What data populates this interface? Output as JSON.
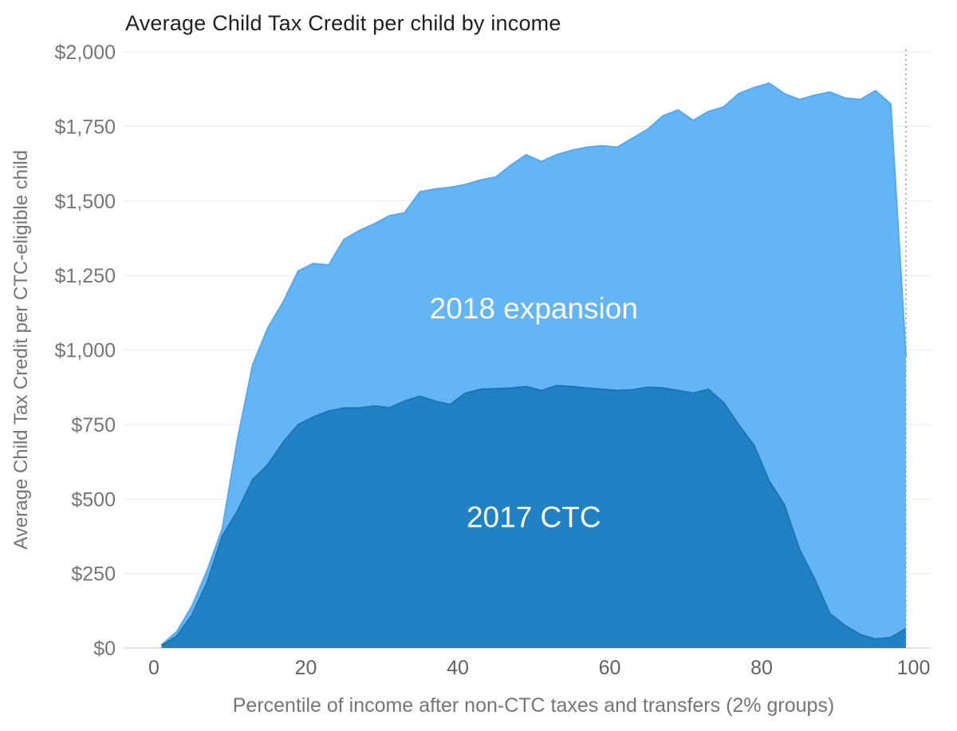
{
  "title": "Average Child Tax Credit per child by income",
  "colors": {
    "series_2017": "#2082c4",
    "series_2017_edge": "#1b76b3",
    "series_2018": "#64b5f6",
    "series_2018_edge": "#55a9ef",
    "grid": "#ededed",
    "axis_line": "#d9d9d9",
    "dotted_line": "#9e9e9e",
    "tick_text": "#757575",
    "title_text": "#212121"
  },
  "chart_data": {
    "type": "area",
    "stacked": true,
    "title": "Average Child Tax Credit per child by income",
    "xlabel": "Percentile of income after non-CTC taxes and transfers (2% groups)",
    "ylabel": "Average Child Tax Credit per CTC-eligible child",
    "x_description": "Income percentile midpoints of 2% groups",
    "x": [
      1,
      3,
      5,
      7,
      9,
      11,
      13,
      15,
      17,
      19,
      21,
      23,
      25,
      27,
      29,
      31,
      33,
      35,
      37,
      39,
      41,
      43,
      45,
      47,
      49,
      51,
      53,
      55,
      57,
      59,
      61,
      63,
      65,
      67,
      69,
      71,
      73,
      75,
      77,
      79,
      81,
      83,
      85,
      87,
      89,
      91,
      93,
      95,
      97,
      99
    ],
    "series": [
      {
        "name": "2017 CTC",
        "values": [
          8,
          40,
          110,
          220,
          375,
          460,
          565,
          615,
          690,
          750,
          775,
          795,
          805,
          805,
          812,
          806,
          828,
          845,
          828,
          817,
          855,
          868,
          870,
          872,
          877,
          864,
          880,
          877,
          872,
          868,
          864,
          866,
          875,
          872,
          864,
          855,
          868,
          823,
          748,
          680,
          560,
          480,
          330,
          230,
          115,
          75,
          45,
          30,
          35,
          65
        ]
      },
      {
        "name": "2018 expansion",
        "values": [
          2,
          15,
          30,
          40,
          25,
          240,
          385,
          460,
          470,
          515,
          515,
          490,
          565,
          595,
          611,
          644,
          632,
          685,
          712,
          728,
          700,
          702,
          710,
          748,
          778,
          768,
          775,
          793,
          808,
          817,
          816,
          844,
          865,
          913,
          941,
          915,
          932,
          992,
          1112,
          1200,
          1335,
          1380,
          1510,
          1625,
          1750,
          1770,
          1795,
          1840,
          1790,
          915
        ]
      }
    ],
    "annotations": [
      {
        "text": "2018 expansion",
        "x": 50,
        "value": 1140
      },
      {
        "text": "2017 CTC",
        "x": 50,
        "value": 440
      }
    ],
    "y_ticks": [
      {
        "value": 0,
        "label": "$0"
      },
      {
        "value": 250,
        "label": "$250"
      },
      {
        "value": 500,
        "label": "$500"
      },
      {
        "value": 750,
        "label": "$750"
      },
      {
        "value": 1000,
        "label": "$1,000"
      },
      {
        "value": 1250,
        "label": "$1,250"
      },
      {
        "value": 1500,
        "label": "$1,500"
      },
      {
        "value": 1750,
        "label": "$1,750"
      },
      {
        "value": 2000,
        "label": "$2,000"
      }
    ],
    "x_ticks": [
      {
        "value": 0,
        "label": "0"
      },
      {
        "value": 20,
        "label": "20"
      },
      {
        "value": 40,
        "label": "40"
      },
      {
        "value": 60,
        "label": "60"
      },
      {
        "value": 80,
        "label": "80"
      },
      {
        "value": 100,
        "label": "100"
      }
    ],
    "ylim": [
      0,
      2000
    ],
    "xlim": [
      0,
      100
    ],
    "grid": true,
    "legend_position": "inside-area-labels",
    "reference_line": {
      "type": "vertical-dotted",
      "x": 99
    }
  }
}
